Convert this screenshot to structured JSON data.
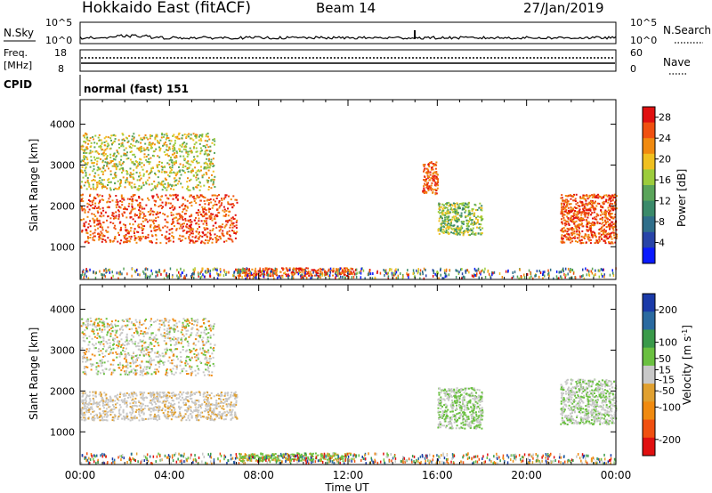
{
  "header": {
    "station": "Hokkaido East (fitACF)",
    "beam": "Beam 14",
    "date": "27/Jan/2019"
  },
  "top_panels": {
    "nsky_label": "N.Sky",
    "nsky_ticks": [
      "10^5",
      "10^0"
    ],
    "nsearch_label": "N.Search",
    "nsearch_ticks": [
      "10^5",
      "10^0"
    ],
    "freq_label": "Freq.",
    "freq_unit": "[MHz]",
    "freq_ticks": [
      "18",
      "8"
    ],
    "nave_label": "Nave",
    "nave_ticks": [
      "60",
      "0"
    ],
    "cpid_label": "CPID",
    "cpid_value": "normal (fast) 151"
  },
  "colors": {
    "power_scale": [
      "#0a1aff",
      "#2844a8",
      "#2f6e8a",
      "#3a8a6a",
      "#5aa45a",
      "#9ccc3c",
      "#f0c020",
      "#f08a10",
      "#f05010",
      "#e01010"
    ],
    "velocity_scale": [
      "#1a3aa8",
      "#2a6aa0",
      "#3a9a4a",
      "#6ac040",
      "#c8c8c8",
      "#e0a030",
      "#f08a10",
      "#f05010",
      "#e01010"
    ]
  },
  "chart_data": [
    {
      "type": "heatmap",
      "title": "",
      "xlabel": "Time UT",
      "ylabel": "Slant Range [km]",
      "xlim": [
        "00:00",
        "24:00"
      ],
      "ylim": [
        200,
        4600
      ],
      "x_ticks": [
        "00:00",
        "04:00",
        "08:00",
        "12:00",
        "16:00",
        "20:00",
        "00:00"
      ],
      "y_ticks": [
        1000,
        2000,
        3000,
        4000
      ],
      "colorbar": {
        "label": "Power [dB]",
        "ticks": [
          4,
          8,
          12,
          16,
          20,
          24,
          28
        ],
        "range": [
          0,
          30
        ]
      },
      "regions": [
        {
          "name": "F-region scatter 00-07UT",
          "t": [
            0,
            7
          ],
          "range_km": [
            1100,
            2300
          ],
          "level": "20-30 dB"
        },
        {
          "name": "scatter 00-06UT",
          "t": [
            0,
            6
          ],
          "range_km": [
            2400,
            3800
          ],
          "level": "12-24 dB"
        },
        {
          "name": "near-range 07-12UT",
          "t": [
            7,
            12.2
          ],
          "range_km": [
            300,
            500
          ],
          "level": "20-30 dB"
        },
        {
          "name": "patch 15:30UT",
          "t": [
            15.3,
            16
          ],
          "range_km": [
            2300,
            3100
          ],
          "level": "20-30 dB"
        },
        {
          "name": "scatter 16-18UT",
          "t": [
            16,
            18
          ],
          "range_km": [
            1300,
            2100
          ],
          "level": "8-20 dB"
        },
        {
          "name": "F-region scatter 21-24UT",
          "t": [
            21.5,
            24
          ],
          "range_km": [
            1100,
            2300
          ],
          "level": "20-30 dB"
        }
      ]
    },
    {
      "type": "heatmap",
      "title": "",
      "xlabel": "Time UT",
      "ylabel": "Slant Range [km]",
      "xlim": [
        "00:00",
        "24:00"
      ],
      "ylim": [
        200,
        4600
      ],
      "x_ticks": [
        "00:00",
        "04:00",
        "08:00",
        "12:00",
        "16:00",
        "20:00",
        "00:00"
      ],
      "y_ticks": [
        1000,
        2000,
        3000,
        4000
      ],
      "colorbar": {
        "label": "Velocity [m s^-1]",
        "ticks": [
          200,
          100,
          50,
          15,
          -15,
          -50,
          -100,
          -200
        ],
        "range": [
          -250,
          250
        ]
      },
      "regions": [
        {
          "name": "ground scatter 00-07UT",
          "t": [
            0,
            7
          ],
          "range_km": [
            1300,
            2000
          ],
          "level": "-15 to 15 m/s"
        },
        {
          "name": "scatter 00-06UT",
          "t": [
            0,
            6
          ],
          "range_km": [
            2400,
            3800
          ],
          "level": "-15 to 15 m/s"
        },
        {
          "name": "near-range 07-12UT",
          "t": [
            7,
            12.2
          ],
          "range_km": [
            300,
            500
          ],
          "level": "15 to 100 m/s"
        },
        {
          "name": "scatter 16-18UT",
          "t": [
            16,
            18
          ],
          "range_km": [
            1100,
            2100
          ],
          "level": "15 to 50 m/s"
        },
        {
          "name": "ground scatter 21-24UT",
          "t": [
            21.5,
            24
          ],
          "range_km": [
            1200,
            2300
          ],
          "level": "-15 to 50 m/s"
        }
      ]
    }
  ]
}
